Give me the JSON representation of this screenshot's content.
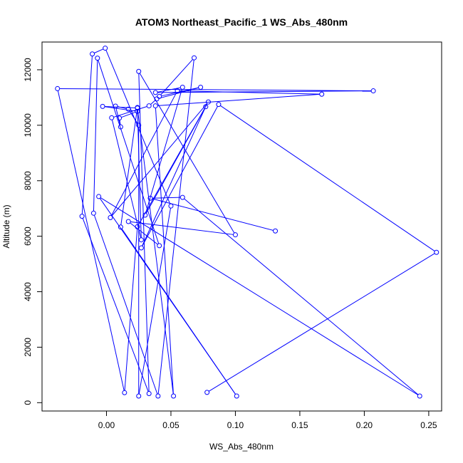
{
  "chart_data": {
    "type": "line",
    "title": "ATOM3 Northeast_Pacific_1 WS_Abs_480nm",
    "xlabel": "WS_Abs_480nm",
    "ylabel": "Altitude (m)",
    "xlim": [
      -0.05,
      0.26
    ],
    "ylim": [
      -300,
      13000
    ],
    "x_ticks": [
      {
        "value": 0.0,
        "label": "0.00"
      },
      {
        "value": 0.05,
        "label": "0.05"
      },
      {
        "value": 0.1,
        "label": "0.10"
      },
      {
        "value": 0.15,
        "label": "0.15"
      },
      {
        "value": 0.2,
        "label": "0.20"
      },
      {
        "value": 0.25,
        "label": "0.25"
      }
    ],
    "y_ticks": [
      {
        "value": 0,
        "label": "0"
      },
      {
        "value": 2000,
        "label": "2000"
      },
      {
        "value": 4000,
        "label": "4000"
      },
      {
        "value": 6000,
        "label": "6000"
      },
      {
        "value": 8000,
        "label": "8000"
      },
      {
        "value": 10000,
        "label": "10000"
      },
      {
        "value": 12000,
        "label": "12000"
      }
    ],
    "grid": false,
    "legend": "none",
    "series": [
      {
        "color": "#0000ff",
        "marker": "open-circle",
        "points": [
          {
            "x": 0.078,
            "y": 370
          },
          {
            "x": 0.256,
            "y": 5420
          },
          {
            "x": 0.087,
            "y": 10750
          },
          {
            "x": 0.027,
            "y": 5580
          },
          {
            "x": 0.077,
            "y": 10670
          },
          {
            "x": 0.03,
            "y": 6760
          },
          {
            "x": 0.059,
            "y": 11370
          },
          {
            "x": 0.038,
            "y": 11180
          },
          {
            "x": 0.207,
            "y": 11240
          },
          {
            "x": -0.038,
            "y": 11320
          },
          {
            "x": 0.014,
            "y": 360
          },
          {
            "x": 0.024,
            "y": 6340
          },
          {
            "x": 0.079,
            "y": 10840
          },
          {
            "x": 0.003,
            "y": 6670
          },
          {
            "x": 0.055,
            "y": 11240
          },
          {
            "x": 0.167,
            "y": 11120
          },
          {
            "x": 0.038,
            "y": 10700
          },
          {
            "x": 0.052,
            "y": 240
          },
          {
            "x": 0.024,
            "y": 10620
          },
          {
            "x": -0.003,
            "y": 10680
          },
          {
            "x": 0.024,
            "y": 10500
          },
          {
            "x": 0.01,
            "y": 10260
          },
          {
            "x": 0.011,
            "y": 9940
          },
          {
            "x": 0.007,
            "y": 10690
          },
          {
            "x": 0.017,
            "y": 10580
          },
          {
            "x": 0.025,
            "y": 10000
          },
          {
            "x": 0.025,
            "y": 240
          },
          {
            "x": 0.05,
            "y": 7090
          },
          {
            "x": -0.001,
            "y": 12780
          },
          {
            "x": -0.011,
            "y": 12570
          },
          {
            "x": -0.019,
            "y": 6720
          },
          {
            "x": 0.033,
            "y": 330
          },
          {
            "x": 0.025,
            "y": 11940
          },
          {
            "x": 0.1,
            "y": 6050
          },
          {
            "x": 0.017,
            "y": 6530
          },
          {
            "x": 0.041,
            "y": 5660
          },
          {
            "x": -0.007,
            "y": 12420
          },
          {
            "x": -0.01,
            "y": 6830
          },
          {
            "x": 0.04,
            "y": 240
          },
          {
            "x": 0.068,
            "y": 12430
          },
          {
            "x": 0.041,
            "y": 11040
          },
          {
            "x": 0.073,
            "y": 11370
          },
          {
            "x": 0.039,
            "y": 10950
          },
          {
            "x": 0.033,
            "y": 10700
          },
          {
            "x": 0.004,
            "y": 10270
          },
          {
            "x": 0.027,
            "y": 5870
          },
          {
            "x": 0.024,
            "y": 10640
          },
          {
            "x": 0.011,
            "y": 6330
          },
          {
            "x": 0.101,
            "y": 240
          },
          {
            "x": -0.006,
            "y": 7430
          },
          {
            "x": 0.243,
            "y": 240
          },
          {
            "x": 0.059,
            "y": 7400
          },
          {
            "x": 0.034,
            "y": 7370
          },
          {
            "x": 0.131,
            "y": 6190
          }
        ]
      }
    ]
  }
}
